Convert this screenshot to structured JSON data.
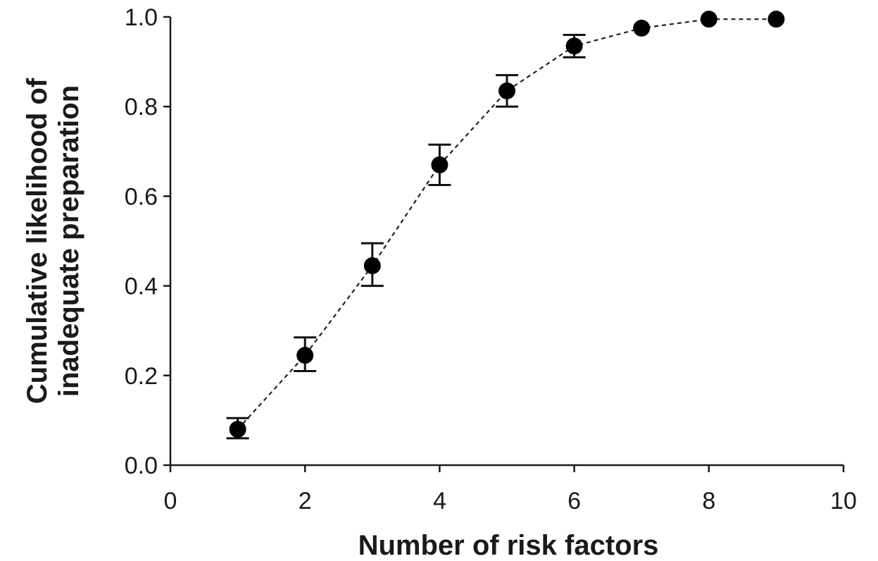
{
  "chart_data": {
    "type": "scatter",
    "title": "",
    "xlabel": "Number of risk factors",
    "ylabel_lines": [
      "Cumulative likelihood of",
      "inadequate preparation"
    ],
    "xlim": [
      0,
      10
    ],
    "ylim": [
      0,
      1
    ],
    "x_ticks": [
      0,
      2,
      4,
      6,
      8,
      10
    ],
    "x_tick_labels": [
      "0",
      "2",
      "4",
      "6",
      "8",
      "10"
    ],
    "y_ticks": [
      0,
      0.2,
      0.4,
      0.6,
      0.8,
      1.0
    ],
    "y_tick_labels": [
      "0.0",
      "0.2",
      "0.4",
      "0.6",
      "0.8",
      "1.0"
    ],
    "grid": false,
    "line_style": "dashed",
    "marker_color": "#000000",
    "series": [
      {
        "x": [
          1,
          2,
          3,
          4,
          5,
          6,
          7,
          8,
          9
        ],
        "y": [
          0.08,
          0.245,
          0.445,
          0.67,
          0.835,
          0.935,
          0.975,
          0.995,
          0.995
        ],
        "error_low": [
          0.06,
          0.21,
          0.4,
          0.625,
          0.8,
          0.91,
          null,
          null,
          null
        ],
        "error_high": [
          0.105,
          0.285,
          0.495,
          0.715,
          0.87,
          0.96,
          null,
          null,
          null
        ]
      }
    ]
  }
}
